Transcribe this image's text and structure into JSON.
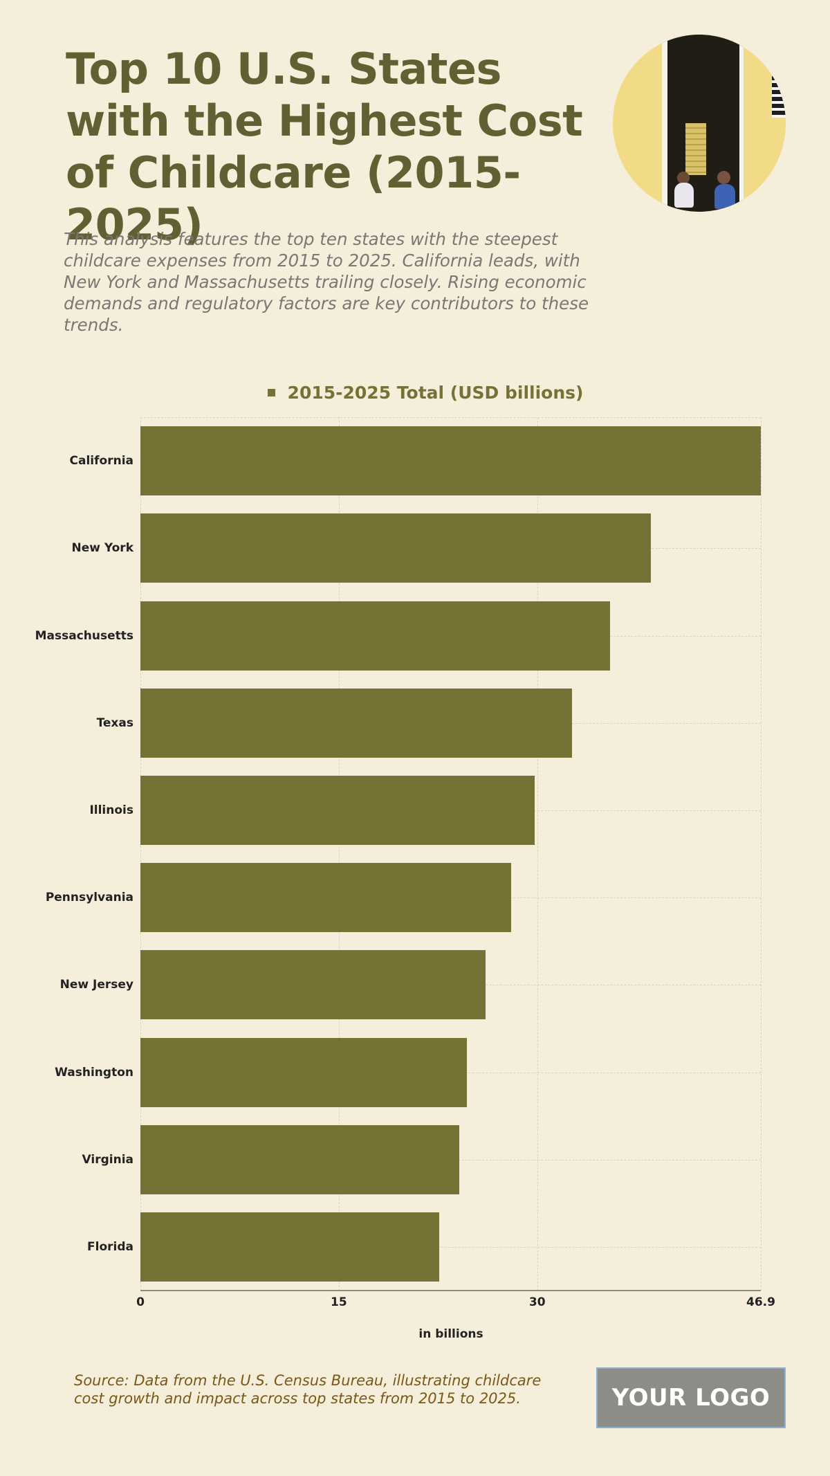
{
  "header": {
    "title": "Top 10 U.S. States with the Highest Cost of Childcare (2015-2025)",
    "subtitle": "This analysis features the top ten states with the steepest childcare expenses from 2015 to 2025. California leads, with New York and Massachusetts trailing closely. Rising economic demands and regulatory factors are key contributors to these trends.",
    "image": "children-in-doorway-photo"
  },
  "colors": {
    "background": "#F5EEDB",
    "title": "#625F32",
    "bar": "#767236",
    "subtitle": "#7A7774",
    "source": "#7B5814",
    "logo_bg": "#8D8C87"
  },
  "chart_data": {
    "type": "bar",
    "orientation": "horizontal",
    "title": "Top 10 U.S. States with the Highest Cost of Childcare (2015-2025)",
    "categories": [
      "California",
      "New York",
      "Massachusetts",
      "Texas",
      "Illinois",
      "Pennsylvania",
      "New Jersey",
      "Washington",
      "Virginia",
      "Florida"
    ],
    "series": [
      {
        "name": "2015-2025 Total (USD billions)",
        "values": [
          46.9,
          38.6,
          35.5,
          32.6,
          29.8,
          28.0,
          26.1,
          24.7,
          24.1,
          22.6
        ]
      }
    ],
    "xlabel": "in billions",
    "ylabel": "",
    "xlim": [
      0,
      46.9
    ],
    "xticks": [
      "0",
      "15",
      "30",
      "46.9"
    ],
    "xtick_values": [
      0,
      15,
      30,
      46.9
    ],
    "grid": true,
    "legend_position": "top"
  },
  "footer": {
    "source": "Source: Data from the U.S. Census Bureau, illustrating childcare cost growth and impact across top states from 2015 to 2025.",
    "logo": "YOUR LOGO"
  }
}
